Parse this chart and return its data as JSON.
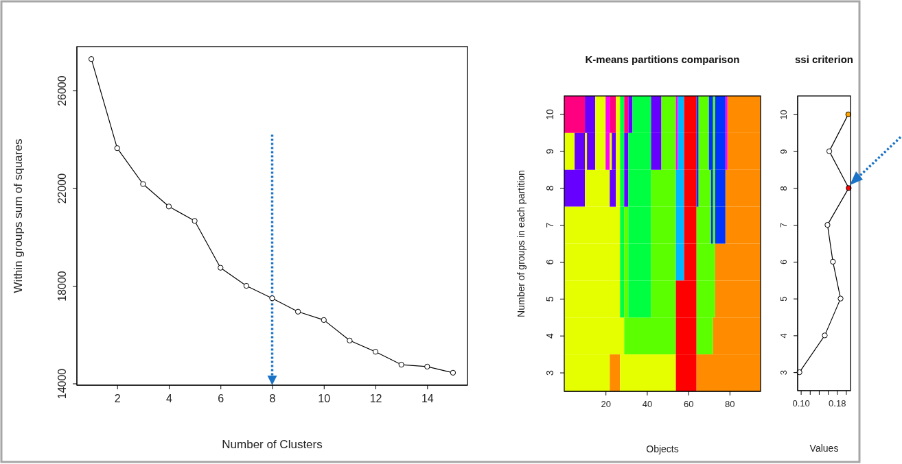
{
  "chart_data": [
    {
      "type": "line",
      "xlabel": "Number of Clusters",
      "ylabel": "Within groups sum of squares",
      "x": [
        1,
        2,
        3,
        4,
        5,
        6,
        7,
        8,
        9,
        10,
        11,
        12,
        13,
        14,
        15
      ],
      "series": [
        {
          "color": "#000000",
          "values": [
            27290,
            23640,
            22170,
            21250,
            20660,
            18740,
            18000,
            17490,
            16940,
            16600,
            15760,
            15300,
            14770,
            14690,
            14440
          ]
        }
      ],
      "xlim": [
        0.44,
        15.56
      ],
      "xticks": [
        2,
        4,
        6,
        8,
        10,
        12,
        14
      ],
      "ylim": [
        13930,
        27800
      ],
      "yticks": [
        14000,
        18000,
        22000,
        26000
      ],
      "marker": "circle",
      "ref_lines": [
        {
          "axis": "x",
          "value": 8,
          "color": "#1a73c6",
          "line_style": "dotted"
        }
      ]
    },
    {
      "type": "bar",
      "orientation": "horizontal",
      "stacked": true,
      "title": "K-means partitions comparison",
      "xlabel": "Objects",
      "ylabel": "Number of groups in each partition",
      "categories": [
        "10",
        "9",
        "8",
        "7",
        "6",
        "5",
        "4",
        "3"
      ],
      "xlim": [
        0,
        95
      ],
      "xticks": [
        20,
        40,
        60,
        80
      ],
      "series": [
        {
          "values": [
            10,
            5,
            10,
            27,
            27,
            27,
            29,
            22
          ],
          "colors": [
            "#ff0080",
            "#e6ff00",
            "#6600ff",
            "#e6ff00",
            "#e6ff00",
            "#e6ff00",
            "#e6ff00",
            "#e6ff00"
          ]
        },
        {
          "values": [
            5,
            5,
            12,
            2,
            2,
            2,
            25,
            5
          ],
          "colors": [
            "#6600ff",
            "#6600ff",
            "#e6ff00",
            "#00ff40",
            "#00ff40",
            "#00ff40",
            "#5cff00",
            "#ff8c00"
          ]
        },
        {
          "values": [
            5,
            1,
            3,
            2,
            2,
            2,
            10,
            27
          ],
          "colors": [
            "#e6ff00",
            "#e6ff00",
            "#6600ff",
            "#5cff00",
            "#5cff00",
            "#5cff00",
            "#ff0000",
            "#e6ff00"
          ]
        },
        {
          "values": [
            2,
            4,
            2,
            11,
            11,
            11,
            8,
            10
          ],
          "colors": [
            "#ff00ff",
            "#6600ff",
            "#e6ff00",
            "#00ff40",
            "#00ff40",
            "#00ff40",
            "#5cff00",
            "#ff0000"
          ]
        },
        {
          "values": [
            3,
            5,
            2,
            12,
            12,
            12,
            23,
            31
          ],
          "colors": [
            "#ff0080",
            "#e6ff00",
            "#00ff40",
            "#5cff00",
            "#5cff00",
            "#5cff00",
            "#ff8c00",
            "#ff8c00"
          ]
        },
        {
          "values": [
            2,
            2,
            2,
            4,
            4,
            10,
            null,
            null
          ],
          "colors": [
            "#e6ff00",
            "#ff00ff",
            "#6600ff",
            "#00b8ff",
            "#00b8ff",
            "#ff0000",
            null,
            null
          ]
        },
        {
          "values": [
            2,
            1,
            11,
            6,
            6,
            9,
            null,
            null
          ],
          "colors": [
            "#00ff40",
            "#e6ff00",
            "#00ff40",
            "#ff0000",
            "#ff0000",
            "#5cff00",
            null,
            null
          ]
        },
        {
          "values": [
            2,
            2,
            12,
            7,
            9,
            22,
            null,
            null
          ],
          "colors": [
            "#ff0080",
            "#6600ff",
            "#5cff00",
            "#5cff00",
            "#5cff00",
            "#ff8c00",
            null,
            null
          ]
        },
        {
          "values": [
            2,
            2,
            4,
            1,
            22,
            null,
            null,
            null
          ],
          "colors": [
            "#6600ff",
            "#e6ff00",
            "#00b8ff",
            "#0033ff",
            "#ff8c00",
            null,
            null,
            null
          ]
        },
        {
          "values": [
            9,
            2,
            6,
            1,
            null,
            null,
            null,
            null
          ],
          "colors": [
            "#00ff40",
            "#00ff40",
            "#ff0000",
            "#5cff00",
            null,
            null,
            null,
            null
          ]
        },
        {
          "values": [
            5,
            2,
            1,
            5,
            null,
            null,
            null,
            null
          ],
          "colors": [
            "#6600ff",
            "#6600ff",
            "#0033ff",
            "#0033ff",
            null,
            null,
            null,
            null
          ]
        },
        {
          "values": [
            7,
            11,
            6,
            17,
            null,
            null,
            null,
            null
          ],
          "colors": [
            "#5cff00",
            "#00ff40",
            "#5cff00",
            "#ff8c00",
            null,
            null,
            null,
            null
          ]
        },
        {
          "values": [
            1,
            5,
            1,
            null,
            null,
            null,
            null,
            null
          ],
          "colors": [
            "#ff00ff",
            "#6600ff",
            "#0033ff",
            null,
            null,
            null,
            null,
            null
          ]
        },
        {
          "values": [
            3,
            7,
            1,
            null,
            null,
            null,
            null,
            null
          ],
          "colors": [
            "#00b8ff",
            "#5cff00",
            "#5cff00",
            null,
            null,
            null,
            null,
            null
          ]
        },
        {
          "values": [
            6,
            1,
            5,
            null,
            null,
            null,
            null,
            null
          ],
          "colors": [
            "#ff0000",
            "#ff00ff",
            "#0033ff",
            null,
            null,
            null,
            null,
            null
          ]
        },
        {
          "values": [
            1,
            3,
            17,
            null,
            null,
            null,
            null,
            null
          ],
          "colors": [
            "#0033ff",
            "#00b8ff",
            "#ff8c00",
            null,
            null,
            null,
            null,
            null
          ]
        },
        {
          "values": [
            5,
            6,
            null,
            null,
            null,
            null,
            null,
            null
          ],
          "colors": [
            "#5cff00",
            "#ff0000",
            null,
            null,
            null,
            null,
            null,
            null
          ]
        },
        {
          "values": [
            2,
            1,
            null,
            null,
            null,
            null,
            null,
            null
          ],
          "colors": [
            "#0033ff",
            "#0033ff",
            null,
            null,
            null,
            null,
            null,
            null
          ]
        },
        {
          "values": [
            1,
            5,
            null,
            null,
            null,
            null,
            null,
            null
          ],
          "colors": [
            "#5cff00",
            "#5cff00",
            null,
            null,
            null,
            null,
            null,
            null
          ]
        },
        {
          "values": [
            5,
            2,
            null,
            null,
            null,
            null,
            null,
            null
          ],
          "colors": [
            "#0033ff",
            "#0033ff",
            null,
            null,
            null,
            null,
            null,
            null
          ]
        },
        {
          "values": [
            1,
            1,
            null,
            null,
            null,
            null,
            null,
            null
          ],
          "colors": [
            "#ff00ff",
            "#5cff00",
            null,
            null,
            null,
            null,
            null,
            null
          ]
        },
        {
          "values": [
            16,
            5,
            null,
            null,
            null,
            null,
            null,
            null
          ],
          "colors": [
            "#ff8c00",
            "#0033ff",
            null,
            null,
            null,
            null,
            null,
            null
          ]
        },
        {
          "values": [
            null,
            1,
            null,
            null,
            null,
            null,
            null,
            null
          ],
          "colors": [
            null,
            "#ff00ff",
            null,
            null,
            null,
            null,
            null,
            null
          ]
        },
        {
          "values": [
            null,
            16,
            null,
            null,
            null,
            null,
            null,
            null
          ],
          "colors": [
            null,
            "#ff8c00",
            null,
            null,
            null,
            null,
            null,
            null
          ]
        }
      ]
    },
    {
      "type": "line",
      "title": "ssi criterion",
      "xlabel": "Values",
      "series": [
        {
          "color": "#000000",
          "x": [
            0.097,
            0.153,
            0.188,
            0.171,
            0.159,
            0.206,
            0.163,
            0.205
          ],
          "values": [
            3,
            4,
            5,
            6,
            7,
            8,
            9,
            10
          ],
          "colors": [
            "#ffffff",
            "#ffffff",
            "#ffffff",
            "#ffffff",
            "#ffffff",
            "#ff0000",
            "#ffffff",
            "#ffa500"
          ]
        }
      ],
      "xlim": [
        0.093,
        0.21
      ],
      "xticks": [
        {
          "value": 0.1,
          "label": "0.10"
        },
        {
          "value": 0.12,
          "label": null
        },
        {
          "value": 0.14,
          "label": null
        },
        {
          "value": 0.16,
          "label": null
        },
        {
          "value": 0.18,
          "label": "0.18"
        },
        {
          "value": 0.2,
          "label": null
        }
      ],
      "ylim": [
        2.5,
        10.5
      ],
      "yticks": [
        3,
        4,
        5,
        6,
        7,
        8,
        9,
        10
      ],
      "marker": "circle"
    }
  ]
}
